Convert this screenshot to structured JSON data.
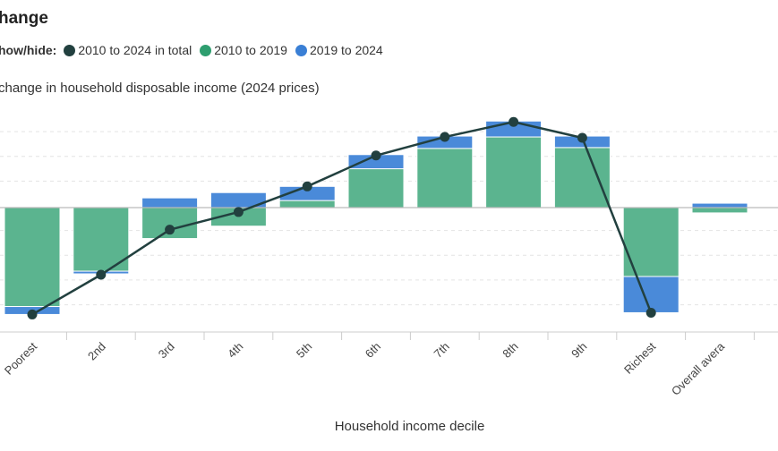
{
  "title": "hange",
  "legend": {
    "label": "how/hide:",
    "items": [
      {
        "name": "2010 to 2024 in total",
        "color": "#22403f"
      },
      {
        "name": "2010 to 2019",
        "color": "#2e9e6f"
      },
      {
        "name": "2019 to 2024",
        "color": "#3a7fd5"
      }
    ]
  },
  "colors": {
    "bar_2010_2019": "#5bb48f",
    "bar_2019_2024": "#4a8ad9",
    "total_line": "#22403f",
    "zero_line": "#bbbbbb",
    "grid": "#e4e4e4"
  },
  "chart_data": {
    "type": "bar",
    "title": "hange",
    "ylabel": " change in household disposable income (2024 prices)",
    "xlabel": "Household income decile",
    "categories": [
      "Poorest",
      "2nd",
      "3rd",
      "4th",
      "5th",
      "6th",
      "7th",
      "8th",
      "9th",
      "Richest",
      "Overall avera"
    ],
    "series": [
      {
        "name": "2010 to 2019",
        "values": [
          -11.2,
          -7.2,
          -3.5,
          -2.1,
          0.8,
          4.4,
          6.7,
          8.0,
          6.8,
          -7.8,
          -0.6
        ]
      },
      {
        "name": "2019 to 2024",
        "values": [
          -0.9,
          -0.3,
          1.1,
          1.7,
          1.6,
          1.6,
          1.4,
          1.8,
          1.3,
          -4.1,
          0.5
        ]
      },
      {
        "name": "2010 to 2024 in total",
        "values": [
          -12.1,
          -7.6,
          -2.5,
          -0.5,
          2.4,
          5.9,
          8.0,
          9.7,
          7.9,
          -11.9,
          null
        ]
      }
    ],
    "ylim": [
      -14,
      11
    ],
    "grid": true,
    "legend_position": "top-left"
  }
}
